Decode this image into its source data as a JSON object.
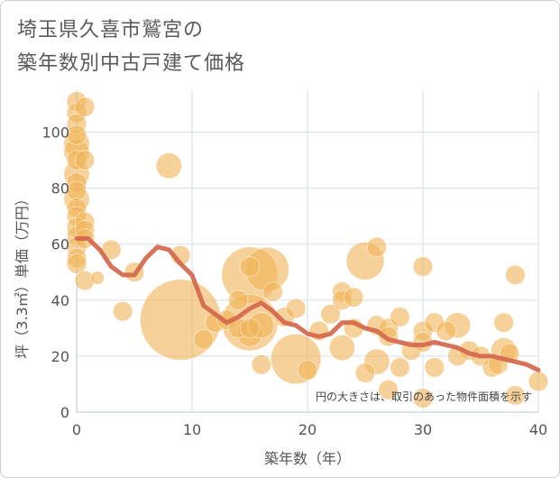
{
  "title_lines": [
    "埼玉県久喜市鷲宮の",
    "築年数別中古戸建て価格"
  ],
  "chart_data": {
    "type": "scatter",
    "xlabel": "築年数（年）",
    "ylabel": "坪（3.3㎡）単価（万円）",
    "xlim": [
      0,
      40
    ],
    "ylim": [
      0,
      115
    ],
    "x_ticks": [
      0,
      10,
      20,
      30,
      40
    ],
    "y_ticks": [
      0,
      20,
      40,
      60,
      80,
      100
    ],
    "grid": true,
    "note": "円の大きさは、取引のあった物件面積を示す",
    "colors": {
      "bubble": "#f0b55a",
      "trend": "#d4674c",
      "grid": "#d5dde6"
    },
    "bubbles": [
      {
        "x": 0,
        "y": 111,
        "s": 2
      },
      {
        "x": 0,
        "y": 107,
        "s": 2
      },
      {
        "x": 0,
        "y": 103,
        "s": 2
      },
      {
        "x": 0,
        "y": 99,
        "s": 2
      },
      {
        "x": 0,
        "y": 96,
        "s": 3
      },
      {
        "x": 0,
        "y": 93,
        "s": 3
      },
      {
        "x": 0,
        "y": 90,
        "s": 2
      },
      {
        "x": 0,
        "y": 85,
        "s": 3
      },
      {
        "x": 0,
        "y": 82,
        "s": 2
      },
      {
        "x": 0,
        "y": 79,
        "s": 2
      },
      {
        "x": 0,
        "y": 76,
        "s": 3
      },
      {
        "x": 0,
        "y": 73,
        "s": 2
      },
      {
        "x": 0,
        "y": 70,
        "s": 2
      },
      {
        "x": 0,
        "y": 66,
        "s": 2
      },
      {
        "x": 0,
        "y": 63,
        "s": 2
      },
      {
        "x": 0,
        "y": 59,
        "s": 2
      },
      {
        "x": 0,
        "y": 55,
        "s": 2
      },
      {
        "x": 0,
        "y": 53,
        "s": 2
      },
      {
        "x": 0.7,
        "y": 109,
        "s": 2
      },
      {
        "x": 0.7,
        "y": 90,
        "s": 2
      },
      {
        "x": 0.7,
        "y": 68,
        "s": 2
      },
      {
        "x": 0.7,
        "y": 65,
        "s": 2
      },
      {
        "x": 0.7,
        "y": 62,
        "s": 2
      },
      {
        "x": 0.7,
        "y": 47,
        "s": 2
      },
      {
        "x": 1.8,
        "y": 48,
        "s": 1
      },
      {
        "x": 3,
        "y": 58,
        "s": 2
      },
      {
        "x": 4,
        "y": 36,
        "s": 2
      },
      {
        "x": 5,
        "y": 50,
        "s": 2
      },
      {
        "x": 8,
        "y": 88,
        "s": 3
      },
      {
        "x": 9,
        "y": 56,
        "s": 2
      },
      {
        "x": 9,
        "y": 33,
        "s": 12
      },
      {
        "x": 11,
        "y": 26,
        "s": 2
      },
      {
        "x": 12,
        "y": 32,
        "s": 2
      },
      {
        "x": 13,
        "y": 33,
        "s": 2
      },
      {
        "x": 14,
        "y": 40,
        "s": 2
      },
      {
        "x": 14,
        "y": 30,
        "s": 2
      },
      {
        "x": 15,
        "y": 52,
        "s": 2
      },
      {
        "x": 15,
        "y": 49,
        "s": 8
      },
      {
        "x": 15,
        "y": 32,
        "s": 8
      },
      {
        "x": 15,
        "y": 28,
        "s": 3
      },
      {
        "x": 15,
        "y": 30,
        "s": 2
      },
      {
        "x": 16,
        "y": 31,
        "s": 3
      },
      {
        "x": 16,
        "y": 17,
        "s": 2
      },
      {
        "x": 16.5,
        "y": 51,
        "s": 6
      },
      {
        "x": 17,
        "y": 43,
        "s": 2
      },
      {
        "x": 18,
        "y": 34,
        "s": 2
      },
      {
        "x": 19,
        "y": 37,
        "s": 2
      },
      {
        "x": 19,
        "y": 19,
        "s": 7
      },
      {
        "x": 20,
        "y": 15,
        "s": 2
      },
      {
        "x": 21,
        "y": 29,
        "s": 2
      },
      {
        "x": 22,
        "y": 35,
        "s": 2
      },
      {
        "x": 23,
        "y": 43,
        "s": 2
      },
      {
        "x": 23,
        "y": 40,
        "s": 2
      },
      {
        "x": 23,
        "y": 23,
        "s": 3
      },
      {
        "x": 24,
        "y": 41,
        "s": 2
      },
      {
        "x": 24,
        "y": 30,
        "s": 2
      },
      {
        "x": 25,
        "y": 54,
        "s": 5
      },
      {
        "x": 25,
        "y": 14,
        "s": 2
      },
      {
        "x": 26,
        "y": 59,
        "s": 2
      },
      {
        "x": 26,
        "y": 31,
        "s": 2
      },
      {
        "x": 26,
        "y": 18,
        "s": 3
      },
      {
        "x": 27,
        "y": 30,
        "s": 2
      },
      {
        "x": 27,
        "y": 27,
        "s": 2
      },
      {
        "x": 27,
        "y": 8,
        "s": 2
      },
      {
        "x": 28,
        "y": 34,
        "s": 2
      },
      {
        "x": 28,
        "y": 16,
        "s": 2
      },
      {
        "x": 29,
        "y": 22,
        "s": 2
      },
      {
        "x": 30,
        "y": 52,
        "s": 2
      },
      {
        "x": 30,
        "y": 29,
        "s": 2
      },
      {
        "x": 30,
        "y": 25,
        "s": 2
      },
      {
        "x": 30,
        "y": 5,
        "s": 2
      },
      {
        "x": 31,
        "y": 32,
        "s": 2
      },
      {
        "x": 31,
        "y": 16,
        "s": 2
      },
      {
        "x": 32,
        "y": 29,
        "s": 2
      },
      {
        "x": 33,
        "y": 31,
        "s": 3
      },
      {
        "x": 33,
        "y": 20,
        "s": 2
      },
      {
        "x": 34,
        "y": 22,
        "s": 2
      },
      {
        "x": 35,
        "y": 20,
        "s": 2
      },
      {
        "x": 36,
        "y": 16,
        "s": 2
      },
      {
        "x": 36.5,
        "y": 17,
        "s": 2
      },
      {
        "x": 37,
        "y": 32,
        "s": 2
      },
      {
        "x": 37,
        "y": 22,
        "s": 3
      },
      {
        "x": 37.5,
        "y": 21,
        "s": 2
      },
      {
        "x": 38,
        "y": 49,
        "s": 2
      },
      {
        "x": 38,
        "y": 6,
        "s": 2
      },
      {
        "x": 40,
        "y": 11,
        "s": 2
      }
    ],
    "trend": [
      {
        "x": 0,
        "y": 62
      },
      {
        "x": 1,
        "y": 62
      },
      {
        "x": 2,
        "y": 58
      },
      {
        "x": 3,
        "y": 52
      },
      {
        "x": 4,
        "y": 49
      },
      {
        "x": 5,
        "y": 49
      },
      {
        "x": 6,
        "y": 55
      },
      {
        "x": 7,
        "y": 59
      },
      {
        "x": 8,
        "y": 58
      },
      {
        "x": 9,
        "y": 53
      },
      {
        "x": 10,
        "y": 49
      },
      {
        "x": 11,
        "y": 38
      },
      {
        "x": 12,
        "y": 35
      },
      {
        "x": 13,
        "y": 32
      },
      {
        "x": 14,
        "y": 34
      },
      {
        "x": 15,
        "y": 37
      },
      {
        "x": 16,
        "y": 39
      },
      {
        "x": 17,
        "y": 36
      },
      {
        "x": 18,
        "y": 32
      },
      {
        "x": 19,
        "y": 31
      },
      {
        "x": 20,
        "y": 28
      },
      {
        "x": 21,
        "y": 27
      },
      {
        "x": 22,
        "y": 28
      },
      {
        "x": 23,
        "y": 32
      },
      {
        "x": 24,
        "y": 32
      },
      {
        "x": 25,
        "y": 30
      },
      {
        "x": 26,
        "y": 29
      },
      {
        "x": 27,
        "y": 26
      },
      {
        "x": 28,
        "y": 25
      },
      {
        "x": 29,
        "y": 24
      },
      {
        "x": 30,
        "y": 24
      },
      {
        "x": 31,
        "y": 25
      },
      {
        "x": 32,
        "y": 24
      },
      {
        "x": 33,
        "y": 23
      },
      {
        "x": 34,
        "y": 21
      },
      {
        "x": 35,
        "y": 20
      },
      {
        "x": 36,
        "y": 20
      },
      {
        "x": 37,
        "y": 19
      },
      {
        "x": 38,
        "y": 18
      },
      {
        "x": 39,
        "y": 17
      },
      {
        "x": 40,
        "y": 15
      }
    ]
  }
}
